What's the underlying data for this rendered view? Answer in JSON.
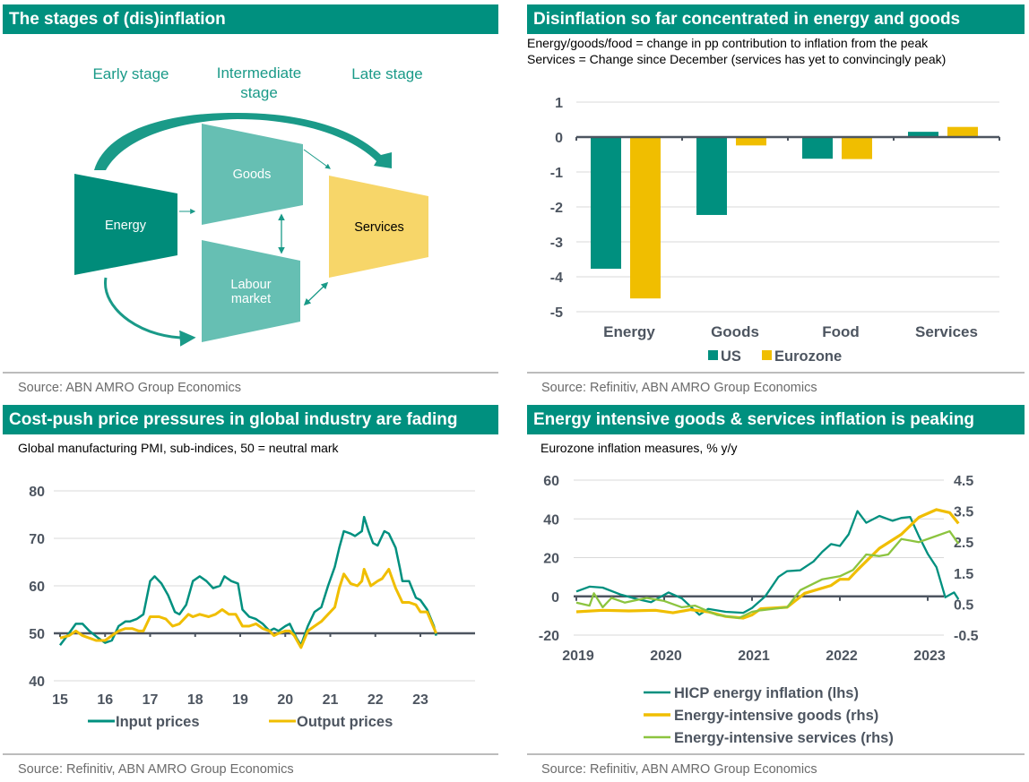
{
  "panels": {
    "top_left": {
      "title": "The stages of (dis)inflation",
      "source": "Source: ABN AMRO Group Economics",
      "diagram": {
        "stage_labels": [
          "Early stage",
          "Intermediate",
          "stage",
          "Late stage"
        ],
        "boxes": {
          "energy": "Energy",
          "goods": "Goods",
          "labour_line1": "Labour",
          "labour_line2": "market",
          "services": "Services"
        },
        "colors": {
          "energy": "#008c7a",
          "goods": "#66bfb3",
          "labour": "#66bfb3",
          "services": "#f7d669",
          "arrow": "#1a9a88"
        }
      }
    },
    "top_right": {
      "title": "Disinflation so far concentrated in energy and goods",
      "subtitle_line1": "Energy/goods/food = change in pp contribution to inflation from the peak",
      "subtitle_line2": "Services = Change since December (services has yet to convincingly peak)",
      "source": "Source: Refinitiv, ABN AMRO Group Economics"
    },
    "bottom_left": {
      "title": "Cost-push price pressures in global industry are fading",
      "subtitle": "Global manufacturing PMI, sub-indices, 50 = neutral mark",
      "source": "Source: Refinitiv, ABN AMRO Group Economics"
    },
    "bottom_right": {
      "title": "Energy intensive goods & services inflation is peaking",
      "subtitle": "Eurozone inflation measures, % y/y",
      "source": "Source: Refinitiv, ABN AMRO Group Economics"
    }
  },
  "chart_data": [
    {
      "id": "disinflation_bar",
      "type": "bar",
      "title": "Disinflation so far concentrated in energy and goods",
      "categories": [
        "Energy",
        "Goods",
        "Food",
        "Services"
      ],
      "series": [
        {
          "name": "US",
          "color": "#00907f",
          "values": [
            -3.77,
            -2.23,
            -0.62,
            0.15
          ]
        },
        {
          "name": "Eurozone",
          "color": "#f0be00",
          "values": [
            -4.62,
            -0.24,
            -0.63,
            0.29
          ]
        }
      ],
      "yticks": [
        "1",
        "0",
        "-1",
        "-2",
        "-3",
        "-4",
        "-5"
      ],
      "ylim": [
        -5,
        1
      ],
      "grid": true,
      "legend": "bottom-center"
    },
    {
      "id": "pmi_line",
      "type": "line",
      "title": "Cost-push price pressures in global industry are fading",
      "xlabel": "",
      "ylabel": "",
      "xticks": [
        "15",
        "16",
        "17",
        "18",
        "19",
        "20",
        "21",
        "22",
        "23"
      ],
      "xlim": [
        15,
        23.45
      ],
      "yticks": [
        "80",
        "70",
        "60",
        "50",
        "40"
      ],
      "ylim": [
        40,
        80
      ],
      "reference_line": 50,
      "grid": true,
      "legend": "bottom-center",
      "series": [
        {
          "name": "Input prices",
          "color": "#00907f",
          "x": [
            15.0,
            15.2,
            15.35,
            15.5,
            15.65,
            15.85,
            16.0,
            16.15,
            16.3,
            16.45,
            16.55,
            16.7,
            16.85,
            17.0,
            17.1,
            17.25,
            17.4,
            17.55,
            17.65,
            17.8,
            17.95,
            18.1,
            18.25,
            18.4,
            18.55,
            18.65,
            18.8,
            18.95,
            19.05,
            19.2,
            19.35,
            19.5,
            19.65,
            19.75,
            19.85,
            20.0,
            20.1,
            20.25,
            20.35,
            20.5,
            20.65,
            20.8,
            20.95,
            21.1,
            21.2,
            21.3,
            21.45,
            21.55,
            21.7,
            21.75,
            21.85,
            21.95,
            22.05,
            22.2,
            22.3,
            22.45,
            22.55,
            22.6,
            22.75,
            22.9,
            23.0,
            23.15,
            23.3,
            23.35
          ],
          "y": [
            47.5,
            50,
            52,
            52,
            50.5,
            49,
            48,
            48.5,
            51.5,
            52.5,
            52.5,
            53,
            54,
            61,
            62,
            60.5,
            58,
            54.5,
            54,
            56,
            61,
            62,
            61,
            59.5,
            60,
            62,
            61,
            60.5,
            55,
            53.5,
            53,
            52,
            50.5,
            51,
            50.5,
            51.5,
            52,
            49,
            47.5,
            51.5,
            54.5,
            55.5,
            60,
            64,
            68,
            71.5,
            71,
            70.5,
            71.5,
            74.5,
            71.5,
            69,
            68.5,
            71.5,
            71,
            68,
            63.5,
            61,
            61,
            57.5,
            57,
            55,
            51.5,
            49.5
          ]
        },
        {
          "name": "Output prices",
          "color": "#f0be00",
          "x": [
            15.0,
            15.2,
            15.35,
            15.5,
            15.65,
            15.8,
            16.0,
            16.15,
            16.3,
            16.45,
            16.6,
            16.75,
            16.85,
            17.0,
            17.2,
            17.35,
            17.5,
            17.65,
            17.85,
            17.95,
            18.1,
            18.3,
            18.45,
            18.6,
            18.75,
            18.9,
            19.05,
            19.2,
            19.35,
            19.5,
            19.65,
            19.75,
            19.85,
            20.0,
            20.1,
            20.2,
            20.35,
            20.5,
            20.65,
            20.8,
            20.95,
            21.1,
            21.2,
            21.3,
            21.45,
            21.6,
            21.7,
            21.75,
            21.9,
            22.05,
            22.15,
            22.3,
            22.45,
            22.6,
            22.75,
            22.9,
            23.0,
            23.15,
            23.35
          ],
          "y": [
            49,
            49.5,
            50.5,
            49.5,
            49,
            48.5,
            48.5,
            49.5,
            50.5,
            51,
            51,
            50.5,
            50.5,
            53.5,
            53.5,
            53,
            51.5,
            52,
            54,
            53.5,
            54,
            53.5,
            54,
            55,
            54,
            54,
            51.5,
            51.5,
            52,
            51,
            50.5,
            49.5,
            50,
            50.5,
            50.5,
            49.5,
            47,
            50.5,
            51.5,
            52.5,
            54,
            55.5,
            59.5,
            62.5,
            60.5,
            60,
            61,
            63.5,
            60,
            61,
            61.5,
            63.5,
            59.5,
            56.5,
            56.5,
            56,
            54.5,
            54.5,
            50
          ]
        }
      ]
    },
    {
      "id": "eurozone_line",
      "type": "line",
      "title": "Energy intensive goods & services inflation is peaking",
      "xticks": [
        "2019",
        "2020",
        "2021",
        "2022",
        "2023"
      ],
      "xlim": [
        2019,
        2023.45
      ],
      "yticks_left": [
        "60",
        "40",
        "20",
        "0",
        "-20"
      ],
      "ylim_left": [
        -20,
        60
      ],
      "yticks_right": [
        "4.5",
        "3.5",
        "2.5",
        "1.5",
        "0.5",
        "-0.5"
      ],
      "ylim_right": [
        -0.5,
        4.5
      ],
      "grid": true,
      "legend": "bottom-center",
      "series": [
        {
          "name": "HICP energy inflation (lhs)",
          "axis": "left",
          "color": "#00907f",
          "x": [
            2019.0,
            2019.15,
            2019.3,
            2019.5,
            2019.7,
            2019.85,
            2020.05,
            2020.2,
            2020.4,
            2020.5,
            2020.7,
            2020.9,
            2021.0,
            2021.15,
            2021.3,
            2021.4,
            2021.55,
            2021.7,
            2021.8,
            2021.9,
            2022.0,
            2022.1,
            2022.2,
            2022.3,
            2022.45,
            2022.6,
            2022.7,
            2022.8,
            2022.9,
            2023.0,
            2023.1,
            2023.2,
            2023.3,
            2023.35
          ],
          "y": [
            2.5,
            5,
            4.5,
            1,
            -1.5,
            -3,
            2,
            -1,
            -9.5,
            -6.5,
            -8,
            -8.5,
            -6,
            0,
            10,
            13,
            13.5,
            18,
            23,
            27,
            26,
            32,
            44,
            38,
            41.5,
            39,
            40.5,
            41,
            31,
            22,
            15,
            -0.5,
            2,
            -1.5
          ]
        },
        {
          "name": "Energy-intensive goods (rhs)",
          "axis": "right",
          "color": "#f0be00",
          "x": [
            2019.0,
            2019.3,
            2019.6,
            2019.9,
            2020.1,
            2020.3,
            2020.5,
            2020.7,
            2020.9,
            2021.0,
            2021.1,
            2021.4,
            2021.6,
            2021.9,
            2022.0,
            2022.1,
            2022.2,
            2022.45,
            2022.7,
            2022.9,
            2023.1,
            2023.25,
            2023.35
          ],
          "y": [
            0.25,
            0.3,
            0.28,
            0.3,
            0.22,
            0.32,
            0.25,
            0.1,
            0.05,
            0.15,
            0.35,
            0.4,
            0.85,
            1.1,
            1.3,
            1.3,
            1.6,
            2.3,
            2.75,
            3.3,
            3.55,
            3.45,
            3.1
          ]
        },
        {
          "name": "Energy-intensive services (rhs)",
          "axis": "right",
          "color": "#8cc43f",
          "x": [
            2019.0,
            2019.15,
            2019.2,
            2019.3,
            2019.4,
            2019.55,
            2019.8,
            2020.0,
            2020.2,
            2020.35,
            2020.6,
            2020.85,
            2021.0,
            2021.1,
            2021.4,
            2021.55,
            2021.8,
            2022.0,
            2022.15,
            2022.3,
            2022.45,
            2022.55,
            2022.7,
            2022.9,
            2023.05,
            2023.25,
            2023.35
          ],
          "y": [
            0.55,
            0.45,
            0.85,
            0.4,
            0.7,
            0.55,
            0.7,
            0.6,
            0.4,
            0.45,
            0.15,
            0.05,
            0.25,
            0.3,
            0.4,
            0.95,
            1.3,
            1.4,
            1.6,
            2.1,
            2.05,
            2.1,
            2.6,
            2.5,
            2.65,
            2.85,
            2.45
          ]
        }
      ]
    }
  ]
}
